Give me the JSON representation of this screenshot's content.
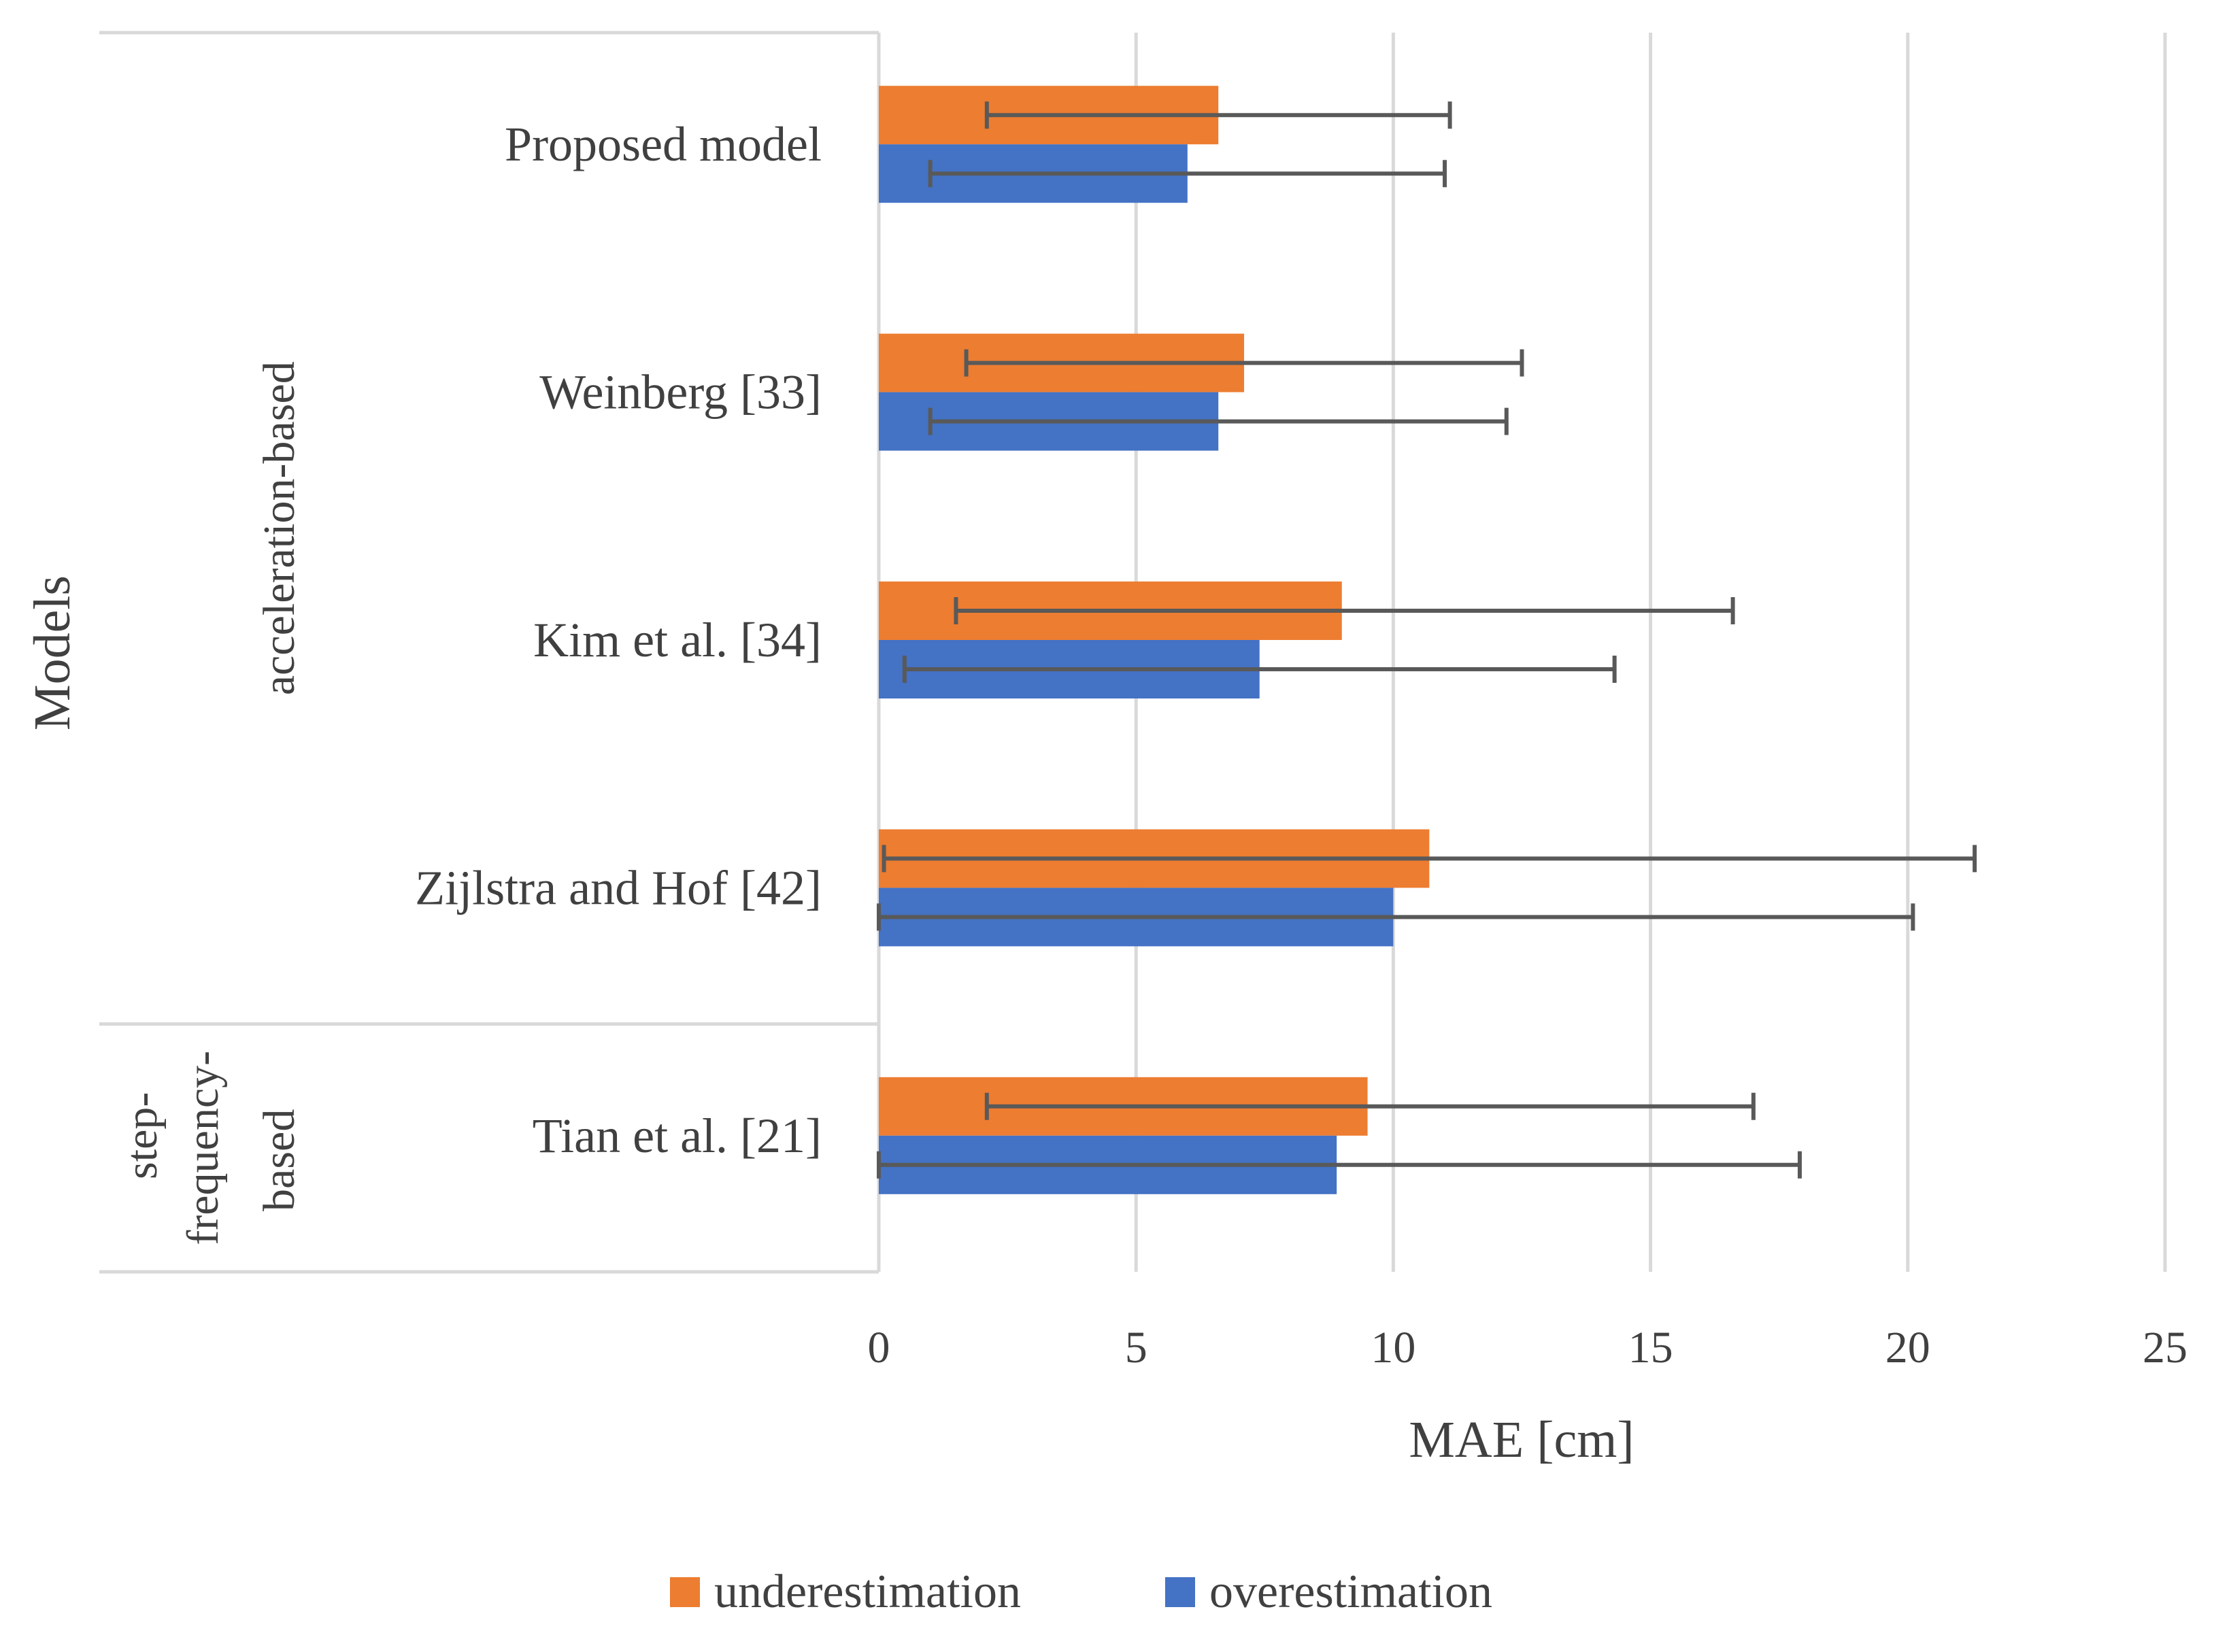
{
  "chart_data": {
    "type": "bar",
    "orientation": "horizontal",
    "title": "",
    "xlabel": "MAE [cm]",
    "ylabel": "Models",
    "xlim": [
      0,
      25
    ],
    "x_ticks": [
      0,
      5,
      10,
      15,
      20,
      25
    ],
    "grid": true,
    "legend_position": "bottom",
    "groups": [
      {
        "label": "acceleration-based",
        "categories": [
          "Proposed model",
          "Weinberg [33]",
          "Kim et al. [34]",
          "Zijlstra and Hof [42]"
        ]
      },
      {
        "label_lines": [
          "step-",
          "frequency-",
          "based"
        ],
        "categories": [
          "Tian et al. [21]"
        ]
      }
    ],
    "categories": [
      "Proposed model",
      "Weinberg [33]",
      "Kim et al. [34]",
      "Zijlstra and Hof [42]",
      "Tian et al. [21]"
    ],
    "series": [
      {
        "name": "underestimation",
        "color": "#ED7D31",
        "values": [
          6.6,
          7.1,
          9.0,
          10.7,
          9.5
        ],
        "error_low": [
          2.1,
          1.7,
          1.5,
          0.1,
          2.1
        ],
        "error_high": [
          11.1,
          12.5,
          16.6,
          21.3,
          17.0
        ]
      },
      {
        "name": "overestimation",
        "color": "#4472C4",
        "values": [
          6.0,
          6.6,
          7.4,
          10.0,
          8.9
        ],
        "error_low": [
          1.0,
          1.0,
          0.5,
          0.0,
          0.0
        ],
        "error_high": [
          11.0,
          12.2,
          14.3,
          20.1,
          17.9
        ]
      }
    ]
  }
}
